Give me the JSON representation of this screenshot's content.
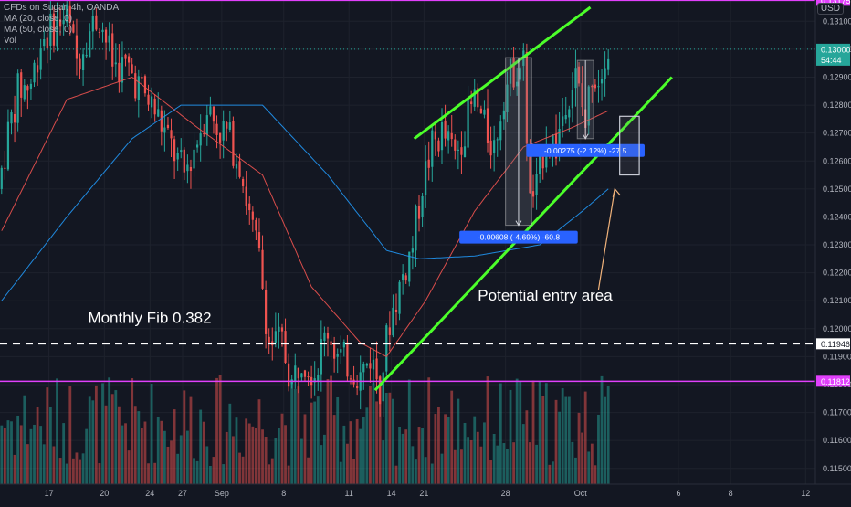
{
  "header": {
    "line1": "CFDs on Sugar, 4h, OANDA",
    "line2": "MA (20, close, 0)",
    "line3": "MA (50, close, 0)",
    "line4": "Vol",
    "currency": "USD"
  },
  "colors": {
    "background": "#131722",
    "up": "#26a69a",
    "down": "#ef5350",
    "ma20": "#ef5350",
    "ma50": "#2196f3",
    "magenta": "#e040fb",
    "channel": "#4cff2a",
    "arrow": "#f0b27a",
    "measure_box": "#2962ff"
  },
  "chart_data": {
    "type": "candlestick",
    "y_range": [
      0.1146,
      0.1315
    ],
    "y_ticks": [
      "0.13100",
      "0.13000",
      "0.12900",
      "0.12800",
      "0.12700",
      "0.12600",
      "0.12500",
      "0.12400",
      "0.12300",
      "0.12200",
      "0.12100",
      "0.12000",
      "0.11900",
      "0.11800",
      "0.11700",
      "0.11600",
      "0.11500"
    ],
    "y_tick_values": [
      0.131,
      0.13,
      0.129,
      0.128,
      0.127,
      0.126,
      0.125,
      0.124,
      0.123,
      0.122,
      0.121,
      0.12,
      0.119,
      0.118,
      0.117,
      0.116,
      0.115
    ],
    "x_ticks": [
      "17",
      "20",
      "24",
      "27",
      "Sep",
      "8",
      "11",
      "14",
      "21",
      "28",
      "Oct",
      "6",
      "8",
      "12"
    ],
    "x_tick_bars": [
      15,
      32,
      46,
      56,
      68,
      87,
      107,
      120,
      130,
      155,
      178,
      208,
      224,
      247
    ],
    "x_bar_range": [
      0,
      250
    ],
    "last_bar": 186,
    "ohlc_waypoints": [
      [
        0,
        0.125
      ],
      [
        3,
        0.127
      ],
      [
        6,
        0.1285
      ],
      [
        10,
        0.1288
      ],
      [
        13,
        0.1303
      ],
      [
        17,
        0.1308
      ],
      [
        21,
        0.1312
      ],
      [
        24,
        0.1296
      ],
      [
        27,
        0.1305
      ],
      [
        31,
        0.1312
      ],
      [
        35,
        0.1295
      ],
      [
        40,
        0.1293
      ],
      [
        44,
        0.1285
      ],
      [
        48,
        0.1278
      ],
      [
        53,
        0.1265
      ],
      [
        57,
        0.1255
      ],
      [
        61,
        0.1268
      ],
      [
        64,
        0.128
      ],
      [
        67,
        0.1272
      ],
      [
        70,
        0.127
      ],
      [
        74,
        0.126
      ],
      [
        77,
        0.124
      ],
      [
        80,
        0.1225
      ],
      [
        83,
        0.1195
      ],
      [
        87,
        0.1195
      ],
      [
        90,
        0.118
      ],
      [
        93,
        0.1191
      ],
      [
        97,
        0.1185
      ],
      [
        101,
        0.12
      ],
      [
        104,
        0.119
      ],
      [
        108,
        0.1187
      ],
      [
        111,
        0.1183
      ],
      [
        114,
        0.119
      ],
      [
        117,
        0.118
      ],
      [
        120,
        0.1203
      ],
      [
        123,
        0.1215
      ],
      [
        127,
        0.123
      ],
      [
        130,
        0.1252
      ],
      [
        133,
        0.1265
      ],
      [
        136,
        0.127
      ],
      [
        140,
        0.1262
      ],
      [
        143,
        0.1272
      ],
      [
        146,
        0.1282
      ],
      [
        149,
        0.1272
      ],
      [
        152,
        0.1265
      ],
      [
        155,
        0.1285
      ],
      [
        158,
        0.1293
      ],
      [
        161,
        0.1295
      ],
      [
        163,
        0.1245
      ],
      [
        165,
        0.125
      ],
      [
        168,
        0.127
      ],
      [
        171,
        0.1265
      ],
      [
        174,
        0.1283
      ],
      [
        177,
        0.129
      ],
      [
        180,
        0.1273
      ],
      [
        182,
        0.1292
      ],
      [
        184,
        0.129
      ],
      [
        186,
        0.13
      ]
    ],
    "ma20": [
      [
        0,
        0.1235
      ],
      [
        20,
        0.1282
      ],
      [
        40,
        0.129
      ],
      [
        60,
        0.1272
      ],
      [
        80,
        0.1255
      ],
      [
        95,
        0.1215
      ],
      [
        110,
        0.1195
      ],
      [
        118,
        0.119
      ],
      [
        130,
        0.121
      ],
      [
        145,
        0.1242
      ],
      [
        160,
        0.1265
      ],
      [
        175,
        0.1272
      ],
      [
        186,
        0.1278
      ]
    ],
    "ma50": [
      [
        0,
        0.121
      ],
      [
        20,
        0.124
      ],
      [
        40,
        0.1268
      ],
      [
        55,
        0.128
      ],
      [
        80,
        0.128
      ],
      [
        100,
        0.1255
      ],
      [
        118,
        0.1228
      ],
      [
        128,
        0.1225
      ],
      [
        145,
        0.1226
      ],
      [
        165,
        0.123
      ],
      [
        178,
        0.1242
      ],
      [
        186,
        0.125
      ]
    ],
    "horizontal_lines": [
      {
        "value": 0.13175,
        "label": "0.13175",
        "style": "solid-magenta"
      },
      {
        "value": 0.11946,
        "label": "0.11946",
        "style": "dashed-white"
      },
      {
        "value": 0.11812,
        "label": "0.11812",
        "style": "solid-magenta"
      }
    ],
    "last_price": {
      "label": "0.13000",
      "countdown": "54:44",
      "value": 0.13
    },
    "channel_lines": [
      {
        "from": [
          127,
          0.1268
        ],
        "to": [
          181,
          0.1315
        ]
      },
      {
        "from": [
          115,
          0.1178
        ],
        "to": [
          206,
          0.129
        ]
      }
    ],
    "measure_boxes": [
      {
        "bar_from": 155,
        "bar_to": 163,
        "top": 0.1297,
        "bottom": 0.1237,
        "label": "-0.00608 (-4.69%) -60.8"
      },
      {
        "bar_from": 177,
        "bar_to": 182,
        "top": 0.1296,
        "bottom": 0.1268,
        "label": "-0.00275 (-2.12%) -27.5"
      }
    ],
    "entry_box": {
      "bar_from": 190,
      "bar_to": 196,
      "top": 0.1276,
      "bottom": 0.1255
    },
    "annotations": [
      {
        "text": "Monthly Fib 0.382"
      },
      {
        "text": "Potential entry area"
      }
    ]
  }
}
